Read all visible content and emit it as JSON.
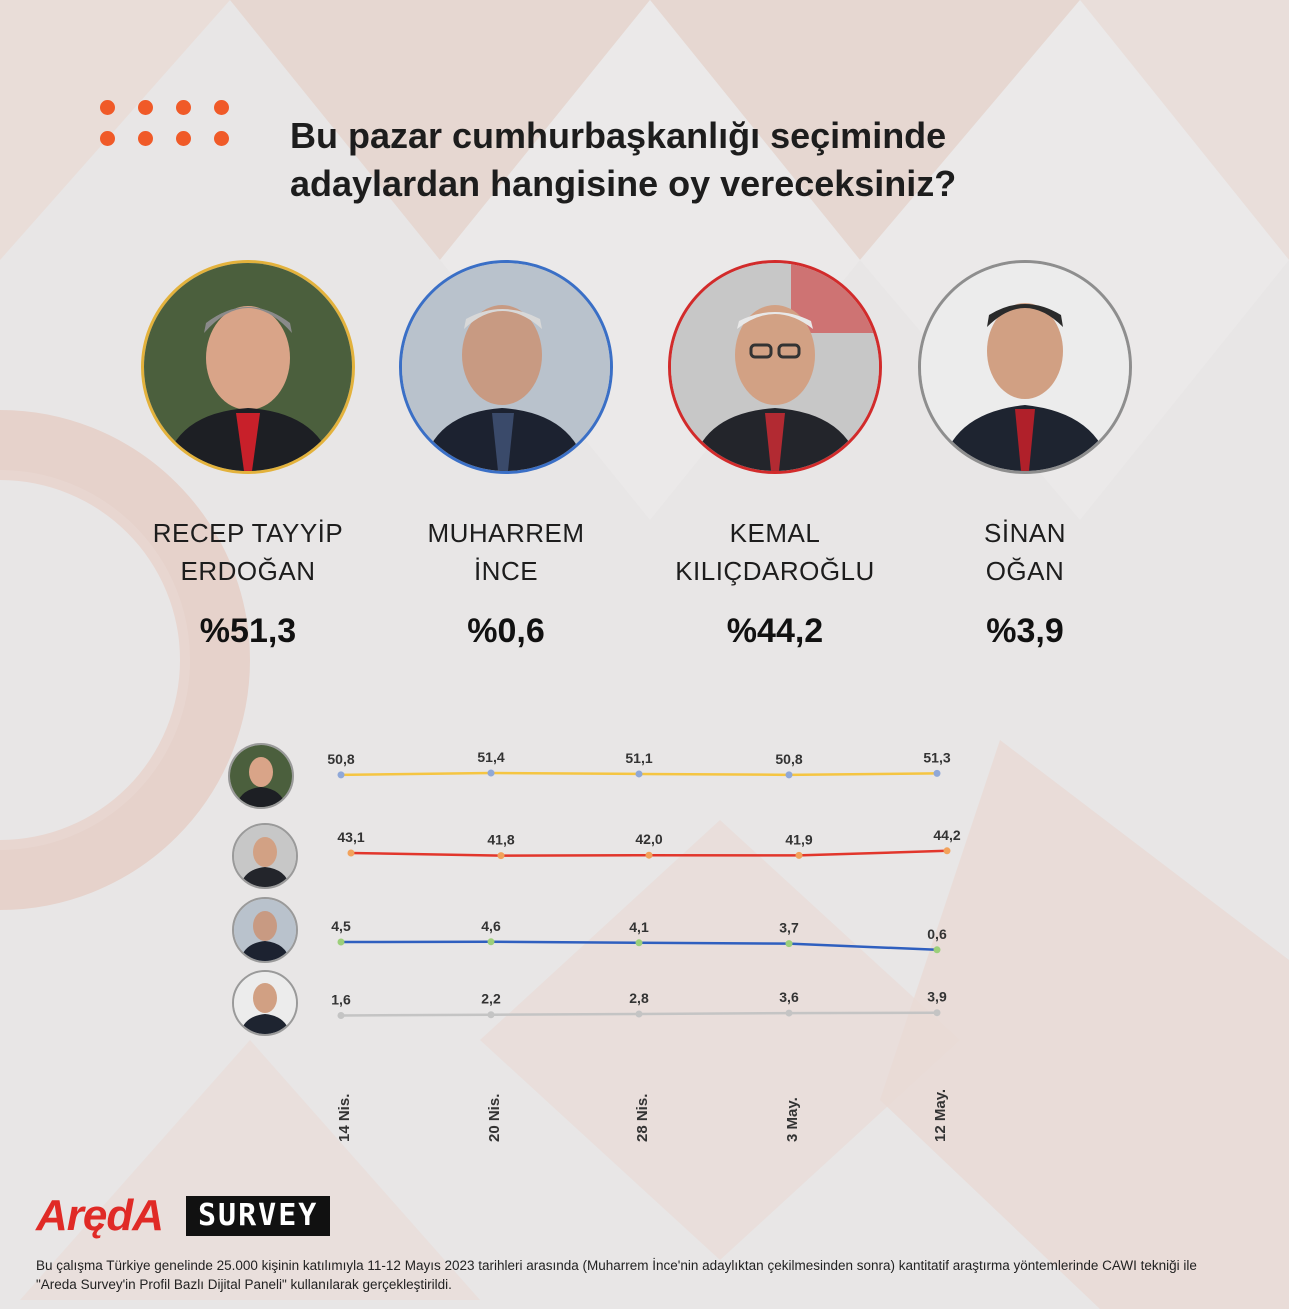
{
  "title": "Bu pazar cumhurbaşkanlığı seçiminde adaylardan hangisine oy vereceksiniz?",
  "colors": {
    "accent_dots": "#f05a28",
    "erdogan": "#f5c542",
    "kilicdaroglu": "#e2362c",
    "ince": "#2f5fbf",
    "ogan": "#bdbdbd"
  },
  "candidates": [
    {
      "name_line1": "RECEP TAYYİP",
      "name_line2": "ERDOĞAN",
      "percent": "%51,3",
      "border": "#e3b23c"
    },
    {
      "name_line1": "MUHARREM",
      "name_line2": "İNCE",
      "percent": "%0,6",
      "border": "#3a6fc6"
    },
    {
      "name_line1": "KEMAL",
      "name_line2": "KILIÇDAROĞLU",
      "percent": "%44,2",
      "border": "#d22b2b"
    },
    {
      "name_line1": "SİNAN",
      "name_line2": "OĞAN",
      "percent": "%3,9",
      "border": "#8e8e8e"
    }
  ],
  "chart_data": {
    "type": "line",
    "categories": [
      "14 Nis.",
      "20 Nis.",
      "28 Nis.",
      "3 May.",
      "12 May."
    ],
    "series": [
      {
        "candidate": "Erdoğan",
        "color": "#f5c542",
        "marker": "#8fa8d8",
        "values": [
          50.8,
          51.4,
          51.1,
          50.8,
          51.3
        ],
        "labels": [
          "50,8",
          "51,4",
          "51,1",
          "50,8",
          "51,3"
        ]
      },
      {
        "candidate": "Kılıçdaroğlu",
        "color": "#e2362c",
        "marker": "#f2a25b",
        "values": [
          43.1,
          41.8,
          42.0,
          41.9,
          44.2
        ],
        "labels": [
          "43,1",
          "41,8",
          "42,0",
          "41,9",
          "44,2"
        ]
      },
      {
        "candidate": "İnce",
        "color": "#2f5fbf",
        "marker": "#9ccf7a",
        "values": [
          4.5,
          4.6,
          4.1,
          3.7,
          0.6
        ],
        "labels": [
          "4,5",
          "4,6",
          "4,1",
          "3,7",
          "0,6"
        ]
      },
      {
        "candidate": "Oğan",
        "color": "#c4c4c4",
        "marker": "#c4c4c4",
        "values": [
          1.6,
          2.2,
          2.8,
          3.6,
          3.9
        ],
        "labels": [
          "1,6",
          "2,2",
          "2,8",
          "3,6",
          "3,9"
        ]
      }
    ]
  },
  "logo": {
    "brand": "ArędA",
    "product": "SURVEY"
  },
  "footnote": "Bu çalışma Türkiye genelinde 25.000 kişinin katılımıyla 11-12 Mayıs 2023 tarihleri arasında (Muharrem İnce'nin adaylıktan çekilmesinden sonra) kantitatif araştırma yöntemlerinde CAWI tekniği ile \"Areda Survey'in Profil Bazlı Dijital Paneli\" kullanılarak gerçekleştirildi."
}
